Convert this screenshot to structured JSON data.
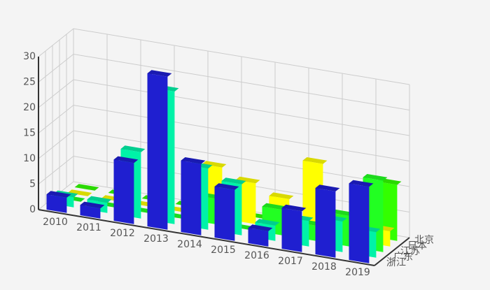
{
  "chart_data": {
    "type": "bar3d",
    "categories": [
      "2010",
      "2011",
      "2012",
      "2013",
      "2014",
      "2015",
      "2016",
      "2017",
      "2018",
      "2019"
    ],
    "series": [
      {
        "name": "北京",
        "color": "#33ff00",
        "values": [
          0,
          0,
          0,
          0,
          0,
          0,
          0,
          0,
          0,
          11
        ]
      },
      {
        "name": "日本",
        "color": "#ffff00",
        "values": [
          0,
          0,
          0,
          0,
          10,
          8,
          6,
          14,
          4,
          3
        ]
      },
      {
        "name": "江苏",
        "color": "#22ff22",
        "values": [
          0,
          0,
          0,
          0,
          5,
          0,
          5,
          3,
          6,
          14
        ]
      },
      {
        "name": "广东",
        "color": "#00f2a8",
        "values": [
          2,
          2,
          13,
          26,
          12,
          10,
          3,
          5,
          6,
          5
        ]
      },
      {
        "name": "浙江",
        "color": "#1f1fd0",
        "values": [
          3,
          2,
          12,
          30,
          14,
          10,
          3,
          8,
          13,
          15
        ]
      }
    ],
    "zlim": [
      0,
      30
    ],
    "zticks": [
      0,
      5,
      10,
      15,
      20,
      25,
      30
    ],
    "grid": true
  }
}
